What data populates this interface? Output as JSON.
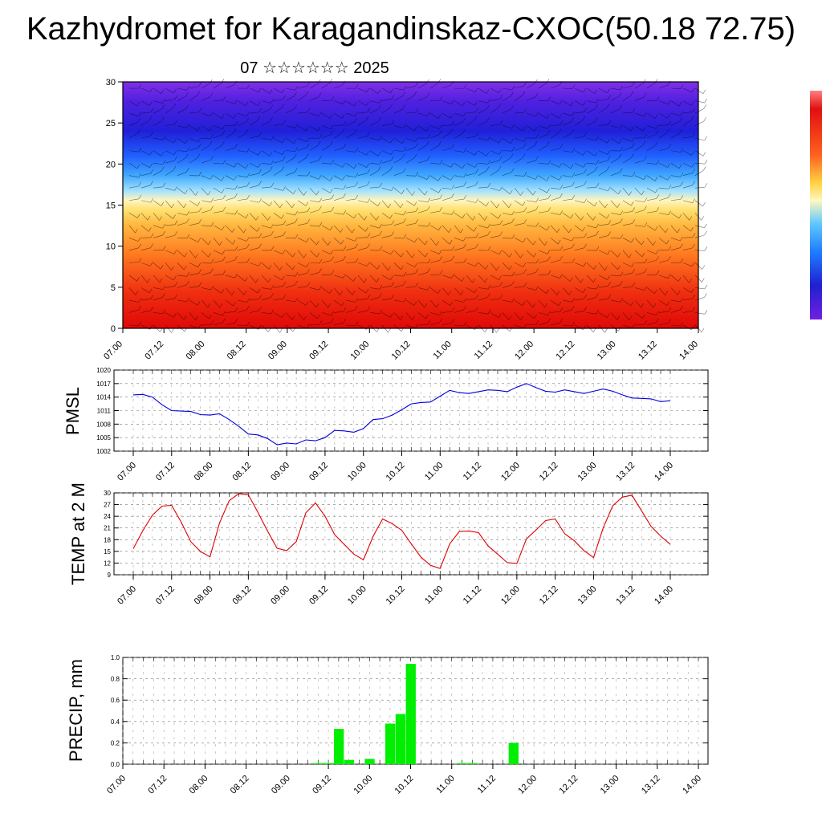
{
  "title": "Kazhydromet for Karagandinskaz-CXOC(50.18 72.75)",
  "subtitle": "07 ☆☆☆☆☆☆ 2025",
  "colors": {
    "pmsl_line": "#0000dd",
    "temp_line": "#dd0000",
    "precip_bar": "#00ee00",
    "colorbar": [
      "#e01010",
      "#f04020",
      "#ff8030",
      "#ffd050",
      "#fff0a0",
      "#70d0ff",
      "#2080ff",
      "#2020d0",
      "#7020e0"
    ]
  },
  "x_tick_labels": [
    "07.00",
    "07.12",
    "08.00",
    "08.12",
    "09.00",
    "09.12",
    "10.00",
    "10.12",
    "11.00",
    "11.12",
    "12.00",
    "12.12",
    "13.00",
    "13.12",
    "14.00"
  ],
  "chart_data": [
    {
      "type": "heatmap",
      "name": "cross-section",
      "y_ticks": [
        "0",
        "5",
        "10",
        "15",
        "20",
        "25",
        "30"
      ],
      "ylim": [
        0,
        30
      ],
      "note_visual": "color-filled cross section with wind barbs"
    },
    {
      "type": "line",
      "ylabel": "PMSL",
      "y_ticks": [
        "1002",
        "1005",
        "1008",
        "1011",
        "1014",
        "1017",
        "1020"
      ],
      "ylim": [
        1002,
        1020
      ],
      "values": [
        1014.5,
        1014.6,
        1014.0,
        1012.3,
        1011.0,
        1010.9,
        1010.8,
        1010.1,
        1010.0,
        1010.3,
        1009.0,
        1007.5,
        1005.8,
        1005.6,
        1004.8,
        1003.4,
        1003.8,
        1003.6,
        1004.5,
        1004.3,
        1005.0,
        1006.6,
        1006.5,
        1006.2,
        1007.0,
        1009.0,
        1009.2,
        1010.0,
        1011.2,
        1012.5,
        1012.8,
        1012.9,
        1014.2,
        1015.5,
        1015.0,
        1014.8,
        1015.2,
        1015.6,
        1015.5,
        1015.2,
        1016.2,
        1017.0,
        1016.1,
        1015.3,
        1015.1,
        1015.6,
        1015.2,
        1014.8,
        1015.3,
        1015.8,
        1015.3,
        1014.5,
        1013.8,
        1013.7,
        1013.6,
        1013.0,
        1013.2
      ]
    },
    {
      "type": "line",
      "ylabel": "TEMP at 2 M",
      "y_ticks": [
        "9",
        "12",
        "15",
        "18",
        "21",
        "24",
        "27",
        "30"
      ],
      "ylim": [
        9,
        30
      ],
      "values": [
        15.7,
        20.3,
        24.3,
        26.6,
        26.8,
        22.5,
        17.5,
        15.0,
        13.6,
        22.3,
        28.0,
        29.8,
        29.5,
        25.0,
        20.2,
        15.8,
        15.2,
        17.5,
        24.9,
        27.4,
        24.0,
        19.3,
        16.8,
        14.3,
        12.8,
        18.8,
        23.3,
        22.1,
        20.4,
        16.9,
        13.5,
        11.4,
        10.6,
        16.9,
        20.1,
        20.2,
        19.8,
        16.4,
        14.3,
        12.1,
        11.9,
        18.2,
        20.5,
        22.9,
        23.3,
        19.5,
        17.7,
        15.2,
        13.4,
        21.0,
        26.7,
        28.9,
        29.4,
        25.4,
        21.4,
        18.9,
        16.8
      ]
    },
    {
      "type": "bar",
      "ylabel": "PRECIP, mm",
      "y_ticks": [
        "0.0",
        "0.2",
        "0.4",
        "0.6",
        "0.8",
        "1.0"
      ],
      "ylim": [
        0,
        1.0
      ],
      "values": [
        0,
        0,
        0,
        0,
        0,
        0,
        0,
        0,
        0,
        0,
        0,
        0,
        0,
        0,
        0,
        0,
        0,
        0,
        0,
        0.01,
        0.01,
        0.33,
        0.04,
        0,
        0.05,
        0,
        0.38,
        0.47,
        0.94,
        0,
        0,
        0,
        0,
        0.01,
        0.01,
        0,
        0,
        0,
        0.2,
        0,
        0,
        0,
        0,
        0,
        0,
        0,
        0,
        0,
        0,
        0,
        0,
        0,
        0,
        0,
        0,
        0,
        0
      ]
    }
  ]
}
